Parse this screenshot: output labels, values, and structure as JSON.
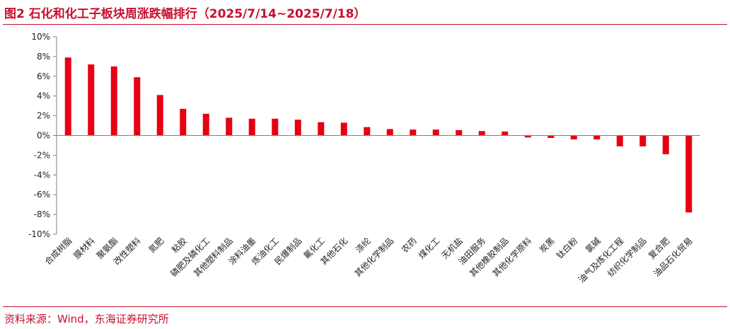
{
  "header": {
    "title": "图2  石化和化工子板块周涨跌幅排行（2025/7/14~2025/7/18）"
  },
  "footer": {
    "source": "资料来源：Wind，东海证券研究所"
  },
  "colors": {
    "accent": "#c8102e",
    "bar": "#e60012",
    "axis": "#808080"
  },
  "chart_data": {
    "type": "bar",
    "title": "",
    "xlabel": "",
    "ylabel": "",
    "ylim": [
      -10,
      10
    ],
    "y_ticks": [
      "10%",
      "8%",
      "6%",
      "4%",
      "2%",
      "0%",
      "-2%",
      "-4%",
      "-6%",
      "-8%",
      "-10%"
    ],
    "y_tick_values": [
      10,
      8,
      6,
      4,
      2,
      0,
      -2,
      -4,
      -6,
      -8,
      -10
    ],
    "grid": false,
    "categories": [
      "合成树脂",
      "膜材料",
      "聚氨酯",
      "改性塑料",
      "氮肥",
      "粘胶",
      "磷肥及磷化工",
      "其他塑料制品",
      "涂料油墨",
      "炼油化工",
      "民爆制品",
      "氟化工",
      "其他石化",
      "涤纶",
      "其他化学制品",
      "农药",
      "煤化工",
      "无机盐",
      "油田服务",
      "其他橡胶制品",
      "其他化学原料",
      "炭黑",
      "钛白粉",
      "氯碱",
      "油气及炼化工程",
      "纺织化学制品",
      "复合肥",
      "油品石化贸易"
    ],
    "values": [
      7.9,
      7.2,
      7.0,
      5.9,
      4.1,
      2.7,
      2.2,
      1.8,
      1.7,
      1.7,
      1.6,
      1.35,
      1.3,
      0.85,
      0.65,
      0.6,
      0.6,
      0.55,
      0.45,
      0.4,
      -0.2,
      -0.25,
      -0.4,
      -0.4,
      -1.1,
      -1.1,
      -1.9,
      -7.8
    ]
  }
}
